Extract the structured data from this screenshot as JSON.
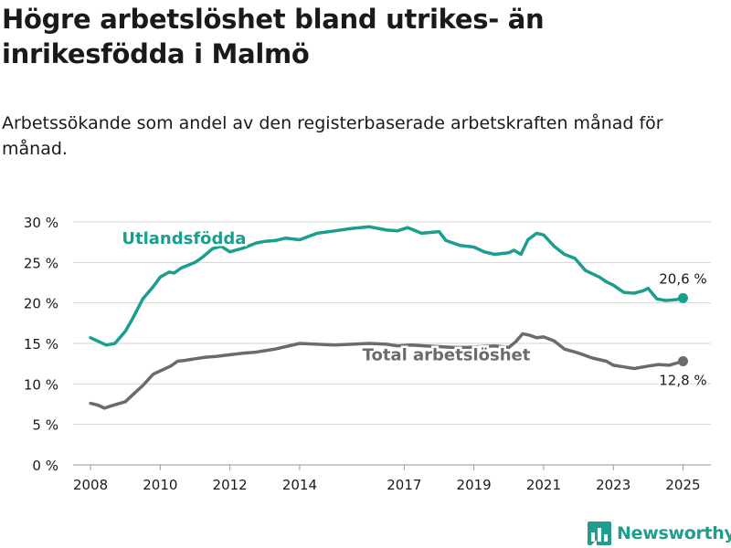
{
  "title": "Högre arbetslöshet bland utrikes- än inrikesfödda i Malmö",
  "subtitle": "Arbetssökande som andel av den registerbaserade arbetskraften månad för månad.",
  "logo": {
    "text": "Newsworthy",
    "icon": "bar-chart-logo-icon"
  },
  "colors": {
    "utlandsfodda": "#1a9e8f",
    "total": "#6b6b6b",
    "grid": "#d6d6d6",
    "text": "#1a1a1a"
  },
  "chart_data": {
    "type": "line",
    "xlim": [
      2007.5,
      2025.8
    ],
    "ylim": [
      0,
      30
    ],
    "xticks": [
      {
        "value": 2008,
        "label": "2008"
      },
      {
        "value": 2010,
        "label": "2010"
      },
      {
        "value": 2012,
        "label": "2012"
      },
      {
        "value": 2014,
        "label": "2014"
      },
      {
        "value": 2017,
        "label": "2017"
      },
      {
        "value": 2019,
        "label": "2019"
      },
      {
        "value": 2021,
        "label": "2021"
      },
      {
        "value": 2023,
        "label": "2023"
      },
      {
        "value": 2025,
        "label": "2025"
      }
    ],
    "yticks": [
      {
        "value": 0,
        "label": "0 %"
      },
      {
        "value": 5,
        "label": "5 %"
      },
      {
        "value": 10,
        "label": "10 %"
      },
      {
        "value": 15,
        "label": "15 %"
      },
      {
        "value": 20,
        "label": "20 %"
      },
      {
        "value": 25,
        "label": "25 %"
      },
      {
        "value": 30,
        "label": "30 %"
      }
    ],
    "series": [
      {
        "name": "Utlandsfödda",
        "label": "Utlandsfödda",
        "end_label": "20,6 %",
        "x": [
          2008.0,
          2008.25,
          2008.45,
          2008.7,
          2009.0,
          2009.2,
          2009.5,
          2009.8,
          2010.0,
          2010.25,
          2010.4,
          2010.6,
          2011.0,
          2011.2,
          2011.5,
          2011.75,
          2012.0,
          2012.4,
          2012.75,
          2013.0,
          2013.3,
          2013.6,
          2014.0,
          2014.5,
          2015.0,
          2015.5,
          2016.0,
          2016.5,
          2016.8,
          2017.1,
          2017.5,
          2018.0,
          2018.2,
          2018.6,
          2019.0,
          2019.3,
          2019.6,
          2020.0,
          2020.15,
          2020.35,
          2020.55,
          2020.8,
          2021.0,
          2021.3,
          2021.6,
          2021.9,
          2022.2,
          2022.6,
          2022.8,
          2023.0,
          2023.3,
          2023.6,
          2023.85,
          2024.0,
          2024.25,
          2024.5,
          2024.8,
          2025.0
        ],
        "values": [
          15.7,
          15.2,
          14.8,
          15.0,
          16.5,
          18.0,
          20.5,
          22.0,
          23.2,
          23.8,
          23.7,
          24.3,
          25.0,
          25.6,
          26.7,
          27.0,
          26.3,
          26.8,
          27.4,
          27.6,
          27.7,
          28.0,
          27.8,
          28.6,
          28.9,
          29.2,
          29.4,
          29.0,
          28.9,
          29.3,
          28.6,
          28.8,
          27.7,
          27.1,
          26.9,
          26.3,
          26.0,
          26.2,
          26.5,
          26.0,
          27.8,
          28.6,
          28.4,
          27.0,
          26.0,
          25.5,
          24.0,
          23.2,
          22.6,
          22.2,
          21.3,
          21.2,
          21.5,
          21.8,
          20.5,
          20.3,
          20.4,
          20.6
        ]
      },
      {
        "name": "Total arbetslöshet",
        "label": "Total arbetslöshet",
        "end_label": "12,8 %",
        "x": [
          2008.0,
          2008.2,
          2008.4,
          2008.6,
          2009.0,
          2009.2,
          2009.5,
          2009.8,
          2010.0,
          2010.3,
          2010.5,
          2010.7,
          2011.0,
          2011.3,
          2011.6,
          2012.0,
          2012.4,
          2012.7,
          2013.0,
          2013.3,
          2013.6,
          2014.0,
          2014.5,
          2015.0,
          2015.5,
          2016.0,
          2016.5,
          2016.8,
          2017.2,
          2017.6,
          2018.0,
          2018.4,
          2018.8,
          2019.2,
          2019.6,
          2020.0,
          2020.2,
          2020.4,
          2020.6,
          2020.8,
          2021.0,
          2021.3,
          2021.6,
          2022.0,
          2022.4,
          2022.8,
          2023.0,
          2023.3,
          2023.6,
          2024.0,
          2024.3,
          2024.6,
          2025.0
        ],
        "values": [
          7.6,
          7.4,
          7.0,
          7.3,
          7.8,
          8.6,
          9.8,
          11.2,
          11.6,
          12.2,
          12.8,
          12.9,
          13.1,
          13.3,
          13.4,
          13.6,
          13.8,
          13.9,
          14.1,
          14.3,
          14.6,
          15.0,
          14.9,
          14.8,
          14.9,
          15.0,
          14.9,
          14.7,
          14.8,
          14.7,
          14.6,
          14.5,
          14.5,
          14.6,
          14.7,
          14.5,
          15.2,
          16.2,
          16.0,
          15.7,
          15.8,
          15.3,
          14.3,
          13.8,
          13.2,
          12.8,
          12.3,
          12.1,
          11.9,
          12.2,
          12.4,
          12.3,
          12.8
        ]
      }
    ]
  }
}
